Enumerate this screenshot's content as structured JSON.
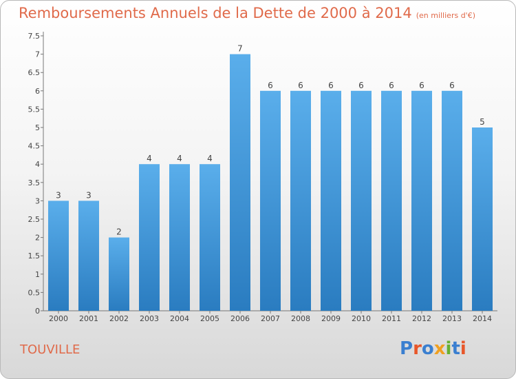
{
  "header": {
    "title": "Remboursements Annuels de la Dette de 2000 à 2014",
    "unit": "(en milliers d'€)"
  },
  "footer": {
    "commune": "TOUVILLE",
    "logo": "Proxiti",
    "logo_colors": [
      "#3a7fd0",
      "#e8572a",
      "#3a7fd0",
      "#f0a020",
      "#66b032",
      "#3a7fd0",
      "#e8572a"
    ]
  },
  "chart_data": {
    "type": "bar",
    "categories": [
      "2000",
      "2001",
      "2002",
      "2003",
      "2004",
      "2005",
      "2006",
      "2007",
      "2008",
      "2009",
      "2010",
      "2011",
      "2012",
      "2013",
      "2014"
    ],
    "values": [
      3,
      3,
      2,
      4,
      4,
      4,
      7,
      6,
      6,
      6,
      6,
      6,
      6,
      6,
      5
    ],
    "data_labels": [
      "3",
      "3",
      "2",
      "4",
      "4",
      "4",
      "7",
      "6",
      "6",
      "6",
      "6",
      "6",
      "6",
      "6",
      "5"
    ],
    "ylim": [
      0,
      7.5
    ],
    "yticks": [
      0,
      0.5,
      1,
      1.5,
      2,
      2.5,
      3,
      3.5,
      4,
      4.5,
      5,
      5.5,
      6,
      6.5,
      7,
      7.5
    ],
    "ytick_labels": [
      "0",
      "0.5",
      "1",
      "1.5",
      "2",
      "2.5",
      "3",
      "3.5",
      "4",
      "4.5",
      "5",
      "5.5",
      "6",
      "6.5",
      "7",
      "7.5"
    ],
    "bar_color": "#4aa3e6",
    "grid": false
  }
}
